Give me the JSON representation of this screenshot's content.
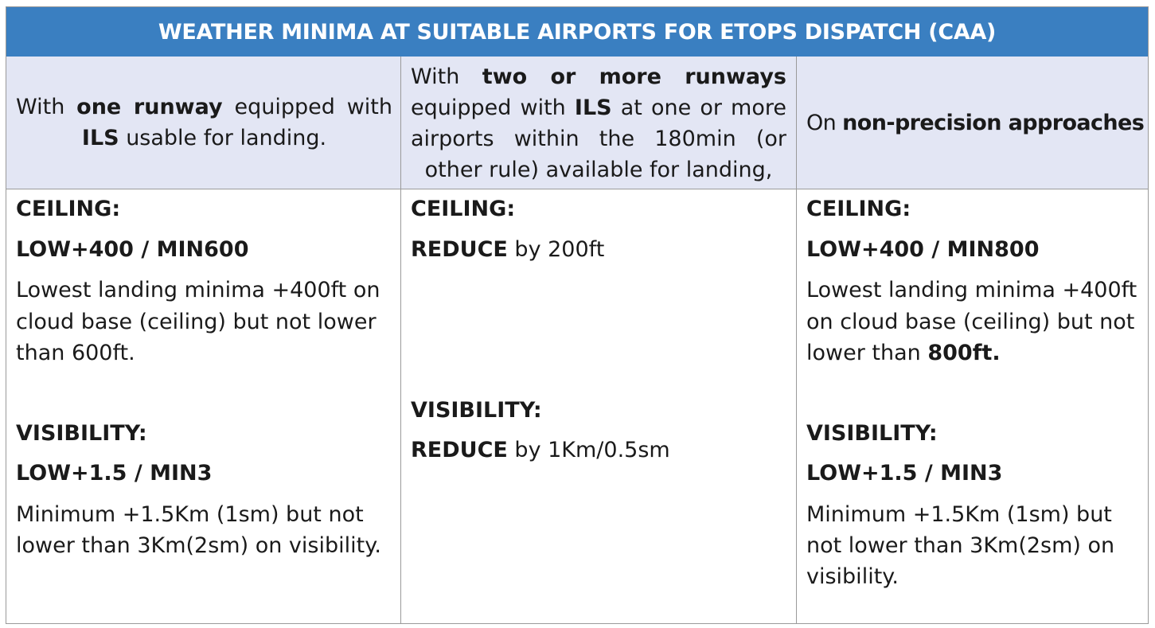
{
  "title": "WEATHER MINIMA AT SUITABLE AIRPORTS FOR ETOPS DISPATCH (CAA)",
  "columns": [
    {
      "header": {
        "pre": "With ",
        "bold1": "one runway",
        "mid": " equipped with ",
        "bold2": "ILS",
        "post": " usable for landing."
      },
      "ceiling_label": "CEILING:",
      "ceiling_value": "LOW+400 / MIN600",
      "ceiling_desc": [
        "Lowest landing minima +400ft on",
        "cloud base (ceiling) but not lower",
        "than 600ft."
      ],
      "visibility_label": "VISIBILITY:",
      "visibility_value": "LOW+1.5 / MIN3",
      "visibility_desc": [
        "Minimum  +1.5Km (1sm) but not",
        "lower than 3Km(2sm) on visibility."
      ]
    },
    {
      "header": {
        "pre": "With ",
        "bold1": "two or more runways",
        "mid": " equipped with ",
        "bold2": "ILS",
        "post": " at one or more airports within the 180min (or other rule) available for landing,"
      },
      "ceiling_label": "CEILING:",
      "ceiling_bold": "REDUCE",
      "ceiling_rest": " by 200ft",
      "visibility_label": "VISIBILITY:",
      "visibility_bold": "REDUCE",
      "visibility_rest": " by 1Km/0.5sm"
    },
    {
      "header": {
        "pre": "On ",
        "bold1": "non-precision approaches"
      },
      "ceiling_label": "CEILING:",
      "ceiling_value": "LOW+400 / MIN800",
      "ceiling_desc": [
        "Lowest landing minima +400ft",
        "on cloud base (ceiling) but not"
      ],
      "ceiling_desc_last_pre": "lower than ",
      "ceiling_desc_last_bold": "800ft.",
      "visibility_label": "VISIBILITY:",
      "visibility_value": "LOW+1.5 / MIN3",
      "visibility_desc": [
        "Minimum +1.5Km (1sm) but",
        "not lower than 3Km(2sm) on",
        "visibility."
      ]
    }
  ]
}
